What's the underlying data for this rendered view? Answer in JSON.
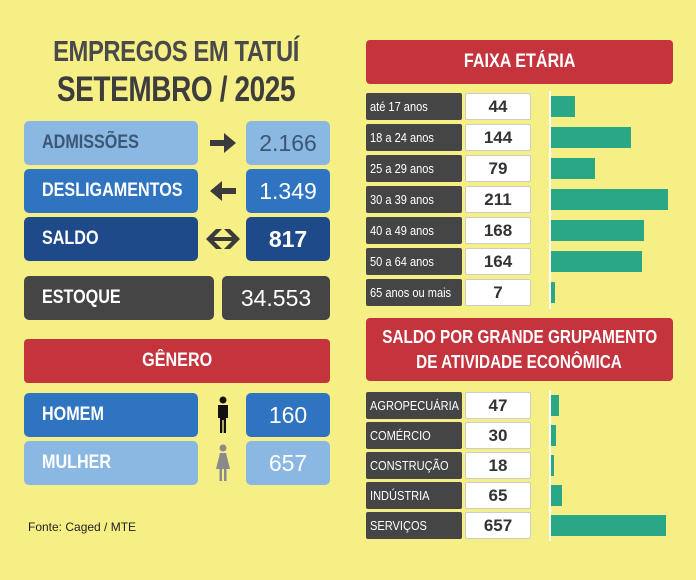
{
  "title_line1": "EMPREGOS EM TATUÍ",
  "title_line2": "SETEMBRO / 2025",
  "summary": [
    {
      "label": "ADMISSÕES",
      "value": "2.166",
      "icon": "arrow-right-icon"
    },
    {
      "label": "DESLIGAMENTOS",
      "value": "1.349",
      "icon": "arrow-left-icon"
    },
    {
      "label": "SALDO",
      "value": "817",
      "icon": "arrows-both-icon"
    },
    {
      "label": "ESTOQUE",
      "value": "34.553"
    }
  ],
  "genero": {
    "title": "GÊNERO",
    "items": [
      {
        "label": "HOMEM",
        "value": "160",
        "icon": "man-icon"
      },
      {
        "label": "MULHER",
        "value": "657",
        "icon": "woman-icon"
      }
    ]
  },
  "source": "Fonte: Caged / MTE",
  "colors": {
    "background": "#f6ef86",
    "light_blue": "#8ab8e2",
    "mid_blue": "#2f74c0",
    "dark_blue": "#1f4a8a",
    "dark_gray": "#454545",
    "red": "#c5333d",
    "bar_green": "#2aa886"
  },
  "chart_data": [
    {
      "type": "bar",
      "title": "FAIXA ETÁRIA",
      "categories": [
        "até 17 anos",
        "18 a 24 anos",
        "25 a 29 anos",
        "30 a 39 anos",
        "40 a 49 anos",
        "50 a 64 anos",
        "65 anos ou mais"
      ],
      "values": [
        44,
        144,
        79,
        211,
        168,
        164,
        7
      ],
      "value_labels": [
        "44",
        "144",
        "79",
        "211",
        "168",
        "164",
        "7"
      ]
    },
    {
      "type": "bar",
      "title_line1": "SALDO POR GRANDE GRUPAMENTO",
      "title_line2": "DE ATIVIDADE ECONÔMICA",
      "categories": [
        "AGROPECUÁRIA",
        "COMÉRCIO",
        "CONSTRUÇÃO",
        "INDÚSTRIA",
        "SERVIÇOS"
      ],
      "values": [
        47,
        30,
        18,
        65,
        657
      ],
      "value_labels": [
        "47",
        "30",
        "18",
        "65",
        "657"
      ]
    }
  ]
}
